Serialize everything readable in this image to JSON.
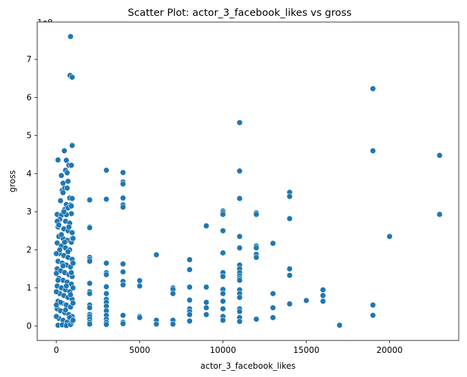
{
  "chart_data": {
    "type": "scatter",
    "title": "Scatter Plot: actor_3_facebook_likes vs gross",
    "xlabel": "actor_3_facebook_likes",
    "ylabel": "gross",
    "y_multiplier_label": "1e8",
    "xlim": [
      -1150,
      24150
    ],
    "ylim": [
      -0.38,
      7.98
    ],
    "x_ticks": [
      0,
      5000,
      10000,
      15000,
      20000
    ],
    "x_tick_labels": [
      "0",
      "5000",
      "10000",
      "15000",
      "20000"
    ],
    "y_ticks": [
      0,
      1,
      2,
      3,
      4,
      5,
      6,
      7
    ],
    "y_tick_labels": [
      "0",
      "1",
      "2",
      "3",
      "4",
      "5",
      "6",
      "7"
    ],
    "grid": false,
    "legend": "none",
    "marker_color": "#1f77b4",
    "y_units_note": "gross values in units of 1e8",
    "series": [
      {
        "points": [
          [
            850,
            7.6
          ],
          [
            820,
            6.58
          ],
          [
            950,
            6.53
          ],
          [
            950,
            4.74
          ],
          [
            480,
            4.6
          ],
          [
            100,
            4.36
          ],
          [
            600,
            4.35
          ],
          [
            750,
            4.22
          ],
          [
            900,
            4.22
          ],
          [
            550,
            4.09
          ],
          [
            650,
            4.02
          ],
          [
            300,
            3.95
          ],
          [
            400,
            3.75
          ],
          [
            700,
            3.8
          ],
          [
            350,
            3.56
          ],
          [
            500,
            3.62
          ],
          [
            650,
            3.62
          ],
          [
            400,
            3.5
          ],
          [
            800,
            3.36
          ],
          [
            950,
            3.35
          ],
          [
            250,
            3.29
          ],
          [
            600,
            3.19
          ],
          [
            850,
            3.18
          ],
          [
            500,
            3.06
          ],
          [
            50,
            2.93
          ],
          [
            300,
            2.91
          ],
          [
            700,
            3.1
          ],
          [
            900,
            2.95
          ],
          [
            200,
            2.8
          ],
          [
            550,
            2.75
          ],
          [
            800,
            2.7
          ],
          [
            100,
            2.6
          ],
          [
            450,
            2.55
          ],
          [
            700,
            2.5
          ],
          [
            950,
            2.45
          ],
          [
            150,
            2.35
          ],
          [
            400,
            2.3
          ],
          [
            650,
            2.25
          ],
          [
            900,
            2.2
          ],
          [
            50,
            2.18
          ],
          [
            300,
            2.1
          ],
          [
            550,
            2.05
          ],
          [
            800,
            2.0
          ],
          [
            200,
            1.9
          ],
          [
            450,
            1.85
          ],
          [
            700,
            1.8
          ],
          [
            950,
            1.75
          ],
          [
            100,
            1.7
          ],
          [
            350,
            1.65
          ],
          [
            600,
            1.6
          ],
          [
            850,
            1.55
          ],
          [
            50,
            1.5
          ],
          [
            250,
            1.45
          ],
          [
            500,
            1.4
          ],
          [
            750,
            1.35
          ],
          [
            950,
            1.3
          ],
          [
            150,
            1.25
          ],
          [
            400,
            1.2
          ],
          [
            650,
            1.15
          ],
          [
            900,
            1.1
          ],
          [
            50,
            1.05
          ],
          [
            300,
            1.0
          ],
          [
            550,
            0.95
          ],
          [
            800,
            0.9
          ],
          [
            200,
            0.85
          ],
          [
            450,
            0.8
          ],
          [
            700,
            0.75
          ],
          [
            950,
            0.7
          ],
          [
            100,
            0.65
          ],
          [
            350,
            0.6
          ],
          [
            600,
            0.55
          ],
          [
            850,
            0.5
          ],
          [
            50,
            0.45
          ],
          [
            250,
            0.4
          ],
          [
            500,
            0.35
          ],
          [
            750,
            0.3
          ],
          [
            950,
            0.25
          ],
          [
            150,
            0.2
          ],
          [
            400,
            0.15
          ],
          [
            650,
            0.1
          ],
          [
            900,
            0.05
          ],
          [
            100,
            0.02
          ],
          [
            350,
            0.03
          ],
          [
            600,
            0.01
          ],
          [
            850,
            0.04
          ],
          [
            50,
            2.75
          ],
          [
            150,
            2.65
          ],
          [
            900,
            3.15
          ],
          [
            600,
            2.92
          ],
          [
            750,
            2.6
          ],
          [
            300,
            2.4
          ],
          [
            950,
            2.3
          ],
          [
            500,
            2.2
          ],
          [
            200,
            2.0
          ],
          [
            700,
            1.95
          ],
          [
            400,
            1.58
          ],
          [
            900,
            1.4
          ],
          [
            100,
            1.2
          ],
          [
            600,
            1.05
          ],
          [
            850,
            0.82
          ],
          [
            250,
            0.62
          ],
          [
            550,
            0.42
          ],
          [
            800,
            0.22
          ],
          [
            950,
            0.12
          ],
          [
            0,
            1.9
          ],
          [
            0,
            1.38
          ],
          [
            0,
            0.9
          ],
          [
            0,
            0.55
          ],
          [
            0,
            0.25
          ],
          [
            1000,
            2.3
          ],
          [
            1000,
            1.65
          ],
          [
            1000,
            1.0
          ],
          [
            1000,
            0.6
          ],
          [
            1000,
            0.15
          ],
          [
            450,
            3.0
          ],
          [
            2000,
            3.31
          ],
          [
            2000,
            2.6
          ],
          [
            2000,
            2.58
          ],
          [
            2000,
            1.8
          ],
          [
            2000,
            1.75
          ],
          [
            2000,
            1.7
          ],
          [
            2000,
            1.12
          ],
          [
            2000,
            0.9
          ],
          [
            2000,
            0.85
          ],
          [
            2000,
            0.55
          ],
          [
            2000,
            0.48
          ],
          [
            2000,
            0.3
          ],
          [
            2000,
            0.25
          ],
          [
            2000,
            0.18
          ],
          [
            2000,
            0.1
          ],
          [
            2000,
            0.05
          ],
          [
            3000,
            4.09
          ],
          [
            3000,
            3.33
          ],
          [
            3000,
            1.65
          ],
          [
            3000,
            1.4
          ],
          [
            3000,
            1.35
          ],
          [
            3000,
            1.03
          ],
          [
            3000,
            0.85
          ],
          [
            3000,
            0.7
          ],
          [
            3000,
            0.62
          ],
          [
            3000,
            0.52
          ],
          [
            3000,
            0.4
          ],
          [
            3000,
            0.28
          ],
          [
            3000,
            0.18
          ],
          [
            3000,
            0.1
          ],
          [
            3000,
            0.04
          ],
          [
            4000,
            4.03
          ],
          [
            4000,
            3.78
          ],
          [
            4000,
            3.73
          ],
          [
            4000,
            3.36
          ],
          [
            4000,
            3.18
          ],
          [
            4000,
            3.12
          ],
          [
            4000,
            1.63
          ],
          [
            4000,
            1.42
          ],
          [
            4000,
            1.17
          ],
          [
            4000,
            1.08
          ],
          [
            4000,
            0.28
          ],
          [
            4000,
            0.1
          ],
          [
            4000,
            0.06
          ],
          [
            5000,
            1.19
          ],
          [
            5000,
            1.05
          ],
          [
            5000,
            0.25
          ],
          [
            5000,
            0.22
          ],
          [
            6000,
            1.87
          ],
          [
            6000,
            0.15
          ],
          [
            6000,
            0.05
          ],
          [
            7000,
            1.0
          ],
          [
            7000,
            0.96
          ],
          [
            7000,
            0.85
          ],
          [
            7000,
            0.15
          ],
          [
            7000,
            0.05
          ],
          [
            8000,
            1.74
          ],
          [
            8000,
            1.48
          ],
          [
            8000,
            1.02
          ],
          [
            8000,
            0.68
          ],
          [
            8000,
            0.45
          ],
          [
            8000,
            0.38
          ],
          [
            8000,
            0.3
          ],
          [
            8000,
            0.13
          ],
          [
            9000,
            2.63
          ],
          [
            9000,
            1.02
          ],
          [
            9000,
            0.62
          ],
          [
            9000,
            0.48
          ],
          [
            9000,
            0.3
          ],
          [
            10000,
            3.02
          ],
          [
            10000,
            2.98
          ],
          [
            10000,
            2.93
          ],
          [
            10000,
            2.5
          ],
          [
            10000,
            1.92
          ],
          [
            10000,
            1.4
          ],
          [
            10000,
            1.3
          ],
          [
            10000,
            0.96
          ],
          [
            10000,
            0.85
          ],
          [
            10000,
            0.65
          ],
          [
            10000,
            0.45
          ],
          [
            10000,
            0.25
          ],
          [
            10000,
            0.15
          ],
          [
            11000,
            5.34
          ],
          [
            11000,
            4.07
          ],
          [
            11000,
            3.35
          ],
          [
            11000,
            2.35
          ],
          [
            11000,
            2.05
          ],
          [
            11000,
            1.6
          ],
          [
            11000,
            1.5
          ],
          [
            11000,
            1.4
          ],
          [
            11000,
            1.32
          ],
          [
            11000,
            1.25
          ],
          [
            11000,
            1.2
          ],
          [
            11000,
            0.95
          ],
          [
            11000,
            0.85
          ],
          [
            11000,
            0.75
          ],
          [
            11000,
            0.45
          ],
          [
            11000,
            0.38
          ],
          [
            11000,
            0.22
          ],
          [
            11000,
            0.12
          ],
          [
            12000,
            2.97
          ],
          [
            12000,
            2.93
          ],
          [
            12000,
            2.1
          ],
          [
            12000,
            2.05
          ],
          [
            12000,
            1.88
          ],
          [
            12000,
            1.8
          ],
          [
            12000,
            0.18
          ],
          [
            13000,
            2.17
          ],
          [
            13000,
            0.85
          ],
          [
            13000,
            0.48
          ],
          [
            13000,
            0.22
          ],
          [
            14000,
            3.51
          ],
          [
            14000,
            3.4
          ],
          [
            14000,
            2.82
          ],
          [
            14000,
            1.5
          ],
          [
            14000,
            1.33
          ],
          [
            14000,
            0.58
          ],
          [
            15000,
            0.67
          ],
          [
            16000,
            0.95
          ],
          [
            16000,
            0.8
          ],
          [
            16000,
            0.65
          ],
          [
            17000,
            0.02
          ],
          [
            19000,
            6.23
          ],
          [
            19000,
            4.6
          ],
          [
            19000,
            0.55
          ],
          [
            19000,
            0.28
          ],
          [
            20000,
            2.35
          ],
          [
            23000,
            4.48
          ],
          [
            23000,
            2.93
          ]
        ]
      }
    ]
  }
}
